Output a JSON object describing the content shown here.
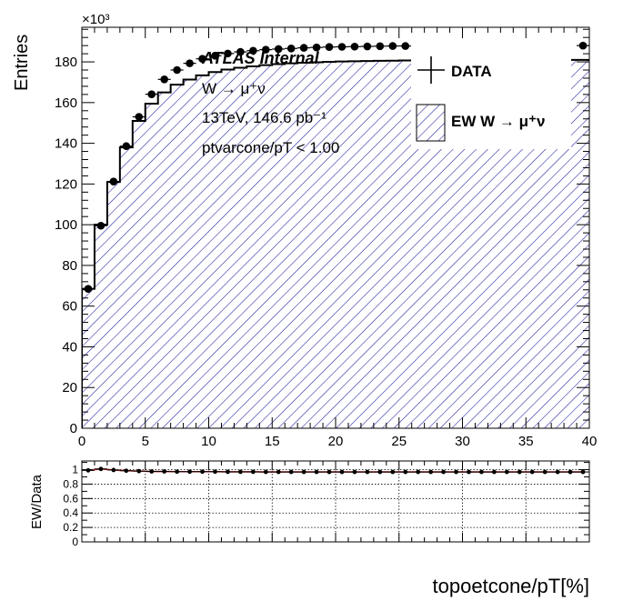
{
  "chart_data": [
    {
      "type": "line",
      "role": "main",
      "ylabel": "Entries",
      "y_multiplier": "×10³",
      "xlim": [
        0,
        40
      ],
      "ylim": [
        0,
        197
      ],
      "x_ticks": [
        0,
        5,
        10,
        15,
        20,
        25,
        30,
        35,
        40
      ],
      "y_ticks": [
        0,
        20,
        40,
        60,
        80,
        100,
        120,
        140,
        160,
        180
      ],
      "annotations": {
        "atlas": "ATLAS Internal",
        "process": "W → μ⁺ν",
        "lumi": "13TeV, 146.6 pb⁻¹",
        "cut": "ptvarcone/pT < 1.00"
      },
      "legend_position": "top-right",
      "series": [
        {
          "name": "DATA",
          "style": "points",
          "x": [
            0.5,
            1.5,
            2.5,
            3.5,
            4.5,
            5.5,
            6.5,
            7.5,
            8.5,
            9.5,
            10.5,
            11.5,
            12.5,
            13.5,
            14.5,
            15.5,
            16.5,
            17.5,
            18.5,
            19.5,
            20.5,
            21.5,
            22.5,
            23.5,
            24.5,
            25.5,
            39.5
          ],
          "y": [
            68.5,
            99.5,
            121.2,
            138.6,
            153.0,
            164.1,
            171.4,
            176.0,
            179.3,
            181.5,
            183.0,
            184.1,
            184.9,
            185.5,
            186.0,
            186.3,
            186.6,
            186.9,
            187.1,
            187.3,
            187.4,
            187.5,
            187.6,
            187.7,
            187.8,
            187.8,
            188.0
          ]
        },
        {
          "name": "EW W → μ⁺ν",
          "style": "hatched-histogram",
          "color": "#1a1a9c",
          "bin_edges": [
            0,
            1,
            2,
            3,
            4,
            5,
            6,
            7,
            8,
            9,
            10,
            11,
            12,
            13,
            14,
            15,
            16,
            17,
            18,
            19,
            20,
            21,
            22,
            23,
            24,
            25,
            26,
            27,
            28,
            29,
            30,
            31,
            32,
            33,
            34,
            35,
            36,
            37,
            38,
            39,
            40
          ],
          "values": [
            68.5,
            100.0,
            121.0,
            138.0,
            151.0,
            159.5,
            165.0,
            168.8,
            171.3,
            173.4,
            175.0,
            176.2,
            177.1,
            177.8,
            178.4,
            178.9,
            179.3,
            179.6,
            179.8,
            180.0,
            180.2,
            180.3,
            180.4,
            180.5,
            180.6,
            180.7,
            180.8,
            180.9,
            180.9,
            181.0,
            181.0,
            181.0,
            181.0,
            181.0,
            181.0,
            181.0,
            181.0,
            181.0,
            181.0,
            181.0
          ]
        }
      ]
    },
    {
      "type": "line",
      "role": "ratio",
      "xlabel": "topoetcone/pT[%]",
      "ylabel": "EW/Data",
      "xlim": [
        0,
        40
      ],
      "ylim": [
        0,
        1.12
      ],
      "x_ticks": [
        0,
        5,
        10,
        15,
        20,
        25,
        30,
        35,
        40
      ],
      "y_ticks": [
        0,
        0.2,
        0.4,
        0.6,
        0.8,
        1
      ],
      "grid": true,
      "series": [
        {
          "name": "",
          "color": "#000000",
          "line_color": "#b22222",
          "x": [
            0.5,
            1.5,
            2.5,
            3.5,
            4.5,
            5.5,
            6.5,
            7.5,
            8.5,
            9.5,
            10.5,
            11.5,
            12.5,
            13.5,
            14.5,
            15.5,
            16.5,
            17.5,
            18.5,
            19.5,
            20.5,
            21.5,
            22.5,
            23.5,
            24.5,
            25.5,
            26.5,
            27.5,
            28.5,
            29.5,
            30.5,
            31.5,
            32.5,
            33.5,
            34.5,
            35.5,
            36.5,
            37.5,
            38.5,
            39.5
          ],
          "y": [
            0.99,
            1.01,
            0.995,
            0.985,
            0.98,
            0.975,
            0.975,
            0.972,
            0.972,
            0.972,
            0.972,
            0.97,
            0.97,
            0.97,
            0.968,
            0.968,
            0.968,
            0.968,
            0.968,
            0.968,
            0.968,
            0.968,
            0.968,
            0.968,
            0.968,
            0.968,
            0.968,
            0.968,
            0.968,
            0.968,
            0.968,
            0.968,
            0.968,
            0.968,
            0.968,
            0.968,
            0.968,
            0.968,
            0.968,
            0.968
          ]
        }
      ]
    }
  ]
}
